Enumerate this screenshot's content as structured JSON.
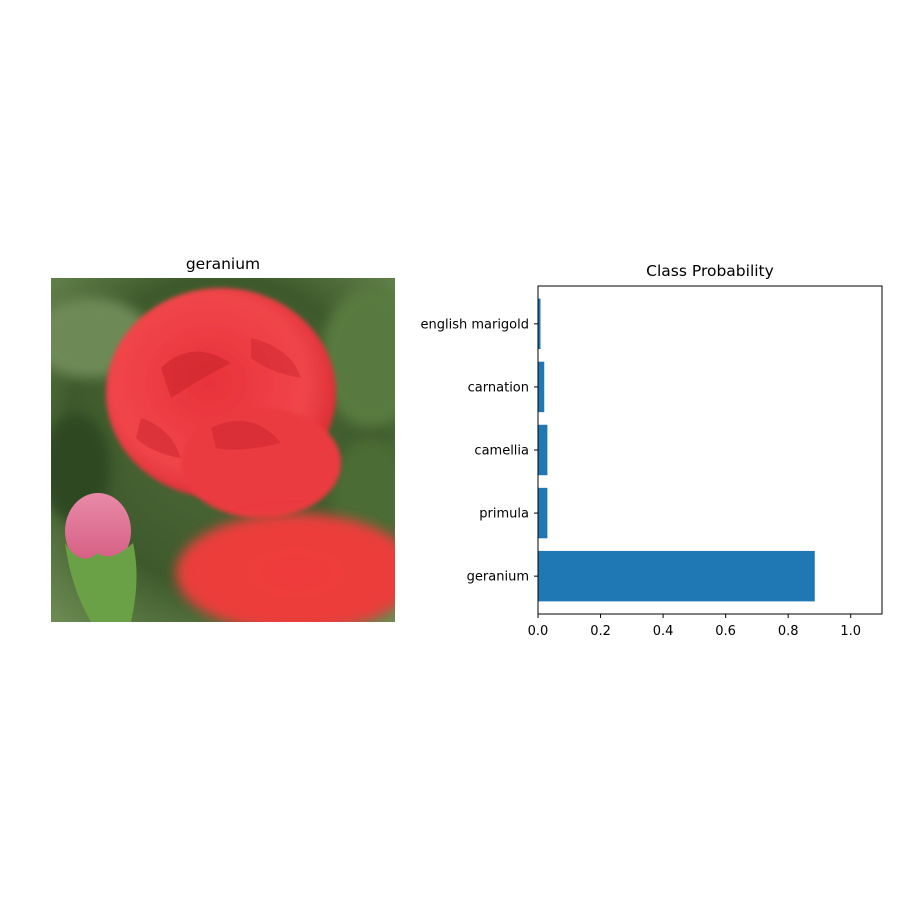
{
  "image_panel": {
    "title": "geranium",
    "photo_description": "red flower with a pink bud on green leafy background"
  },
  "chart_data": {
    "type": "bar",
    "orientation": "horizontal",
    "title": "Class Probability",
    "categories": [
      "geranium",
      "primula",
      "camellia",
      "carnation",
      "english marigold"
    ],
    "values": [
      0.885,
      0.03,
      0.03,
      0.02,
      0.008
    ],
    "xlim": [
      0,
      1.1
    ],
    "xticks": [
      "0.0",
      "0.2",
      "0.4",
      "0.6",
      "0.8",
      "1.0"
    ],
    "xlabel": "",
    "ylabel": "",
    "bar_color": "#1f77b4",
    "grid": false,
    "legend": "none"
  }
}
